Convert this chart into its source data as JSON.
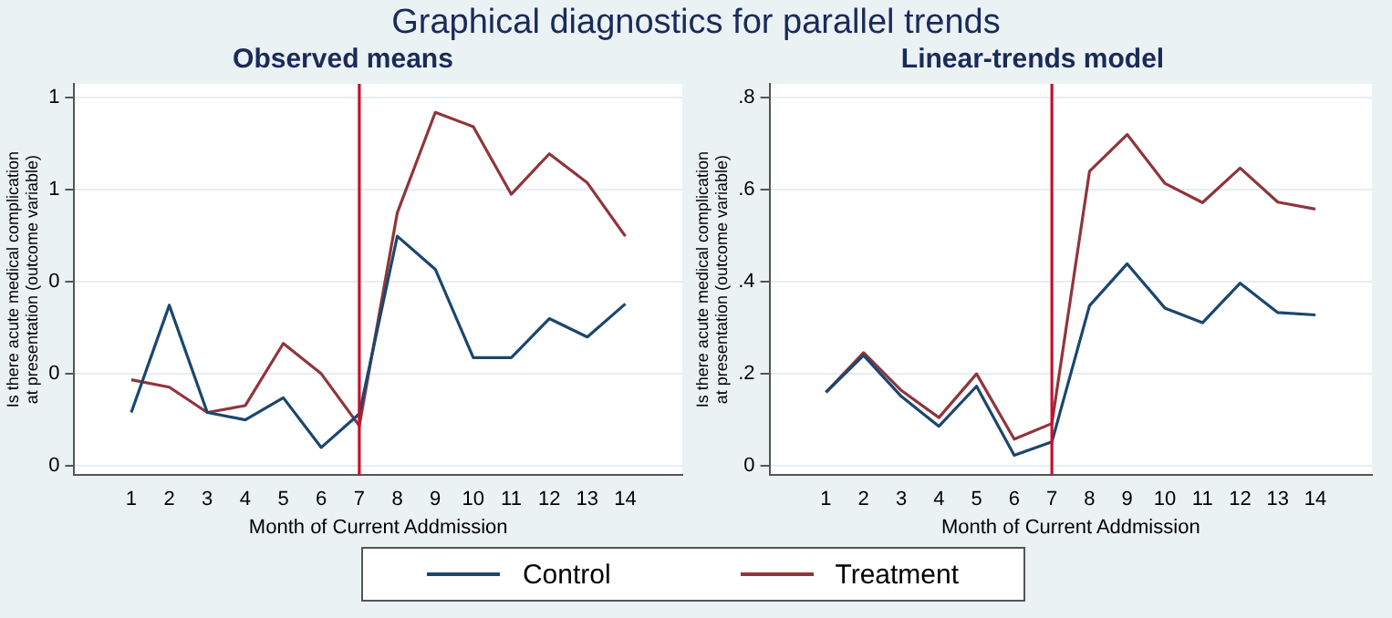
{
  "chart_data": [
    {
      "type": "line",
      "title": "Graphical diagnostics for parallel trends",
      "subtitle": "Observed means",
      "xlabel": "Month of Current Addmission",
      "ylabel": "Is there acute medical complication at presentation (outcome variable)",
      "x": [
        1,
        2,
        3,
        4,
        5,
        6,
        7,
        8,
        9,
        10,
        11,
        12,
        13,
        14
      ],
      "xlim": [
        -0.5,
        15.5
      ],
      "xticks": [
        1,
        2,
        3,
        4,
        5,
        6,
        7,
        8,
        9,
        10,
        11,
        12,
        13,
        14
      ],
      "ylim": [
        -0.02,
        0.83
      ],
      "yticks": [
        {
          "value": 0,
          "label": "0"
        },
        {
          "value": 0.2,
          "label": "0"
        },
        {
          "value": 0.4,
          "label": "0"
        },
        {
          "value": 0.6,
          "label": "1"
        },
        {
          "value": 0.8,
          "label": "1"
        }
      ],
      "grid": "y",
      "legend": "bottom",
      "ref_lines": [
        {
          "axis": "x",
          "value": 7,
          "color": "#c8102e"
        }
      ],
      "series": [
        {
          "name": "Control",
          "color": "#1a476f",
          "values": [
            0.116,
            0.349,
            0.116,
            0.1,
            0.148,
            0.04,
            0.113,
            0.499,
            0.427,
            0.235,
            0.235,
            0.32,
            0.28,
            0.352
          ]
        },
        {
          "name": "Treatment",
          "color": "#90353b",
          "values": [
            0.187,
            0.171,
            0.116,
            0.131,
            0.266,
            0.2,
            0.087,
            0.55,
            0.768,
            0.737,
            0.59,
            0.678,
            0.615,
            0.499
          ]
        }
      ]
    },
    {
      "type": "line",
      "title": "Linear-trends model",
      "xlabel": "Month of Current Addmission",
      "ylabel": "Is there acute medical complication at presentation (outcome variable)",
      "x": [
        1,
        2,
        3,
        4,
        5,
        6,
        7,
        8,
        9,
        10,
        11,
        12,
        13,
        14
      ],
      "xlim": [
        -0.5,
        15.5
      ],
      "xticks": [
        1,
        2,
        3,
        4,
        5,
        6,
        7,
        8,
        9,
        10,
        11,
        12,
        13,
        14
      ],
      "ylim": [
        -0.02,
        0.83
      ],
      "yticks": [
        {
          "value": 0,
          "label": "0"
        },
        {
          "value": 0.2,
          "label": ".2"
        },
        {
          "value": 0.4,
          "label": ".4"
        },
        {
          "value": 0.6,
          "label": ".6"
        },
        {
          "value": 0.8,
          "label": ".8"
        }
      ],
      "grid": "y",
      "ref_lines": [
        {
          "axis": "x",
          "value": 7,
          "color": "#c8102e"
        }
      ],
      "series": [
        {
          "color": "#1a476f",
          "values": [
            0.16,
            0.24,
            0.151,
            0.086,
            0.173,
            0.023,
            0.052,
            0.348,
            0.439,
            0.343,
            0.311,
            0.397,
            0.333,
            0.328
          ]
        },
        {
          "color": "#90353b",
          "values": [
            0.16,
            0.246,
            0.164,
            0.105,
            0.2,
            0.058,
            0.092,
            0.64,
            0.72,
            0.614,
            0.572,
            0.647,
            0.573,
            0.558
          ]
        }
      ]
    }
  ]
}
